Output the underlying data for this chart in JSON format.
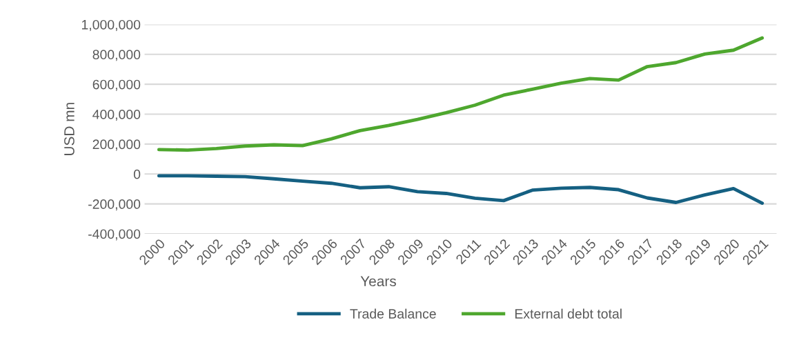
{
  "chart_data": {
    "type": "line",
    "xlabel": "Years",
    "ylabel": "USD mn",
    "categories": [
      "2000",
      "2001",
      "2002",
      "2003",
      "2004",
      "2005",
      "2006",
      "2007",
      "2008",
      "2009",
      "2010",
      "2011",
      "2012",
      "2013",
      "2014",
      "2015",
      "2016",
      "2017",
      "2018",
      "2019",
      "2020",
      "2021"
    ],
    "series": [
      {
        "name": "Trade Balance",
        "color": "#156082",
        "values": [
          -12000,
          -12000,
          -15000,
          -18000,
          -32000,
          -48000,
          -62000,
          -92000,
          -85000,
          -118000,
          -130000,
          -162000,
          -178000,
          -108000,
          -95000,
          -90000,
          -105000,
          -160000,
          -190000,
          -140000,
          -97000,
          -195000
        ]
      },
      {
        "name": "External debt total",
        "color": "#4ea72e",
        "values": [
          163000,
          160000,
          170000,
          187000,
          195000,
          190000,
          235000,
          290000,
          325000,
          365000,
          410000,
          460000,
          527000,
          567000,
          607000,
          638000,
          628000,
          718000,
          745000,
          802000,
          828000,
          910000
        ]
      }
    ],
    "ylim": [
      -400000,
      1000000
    ],
    "yticks": [
      {
        "value": -400000,
        "label": "-400,000"
      },
      {
        "value": -200000,
        "label": "-200,000"
      },
      {
        "value": 0,
        "label": "0"
      },
      {
        "value": 200000,
        "label": "200,000"
      },
      {
        "value": 400000,
        "label": "400,000"
      },
      {
        "value": 600000,
        "label": "600,000"
      },
      {
        "value": 800000,
        "label": "800,000"
      },
      {
        "value": 1000000,
        "label": "1,000,000"
      }
    ],
    "grid": "y",
    "legend": "bottom",
    "marker": "none",
    "line_style": "solid"
  }
}
